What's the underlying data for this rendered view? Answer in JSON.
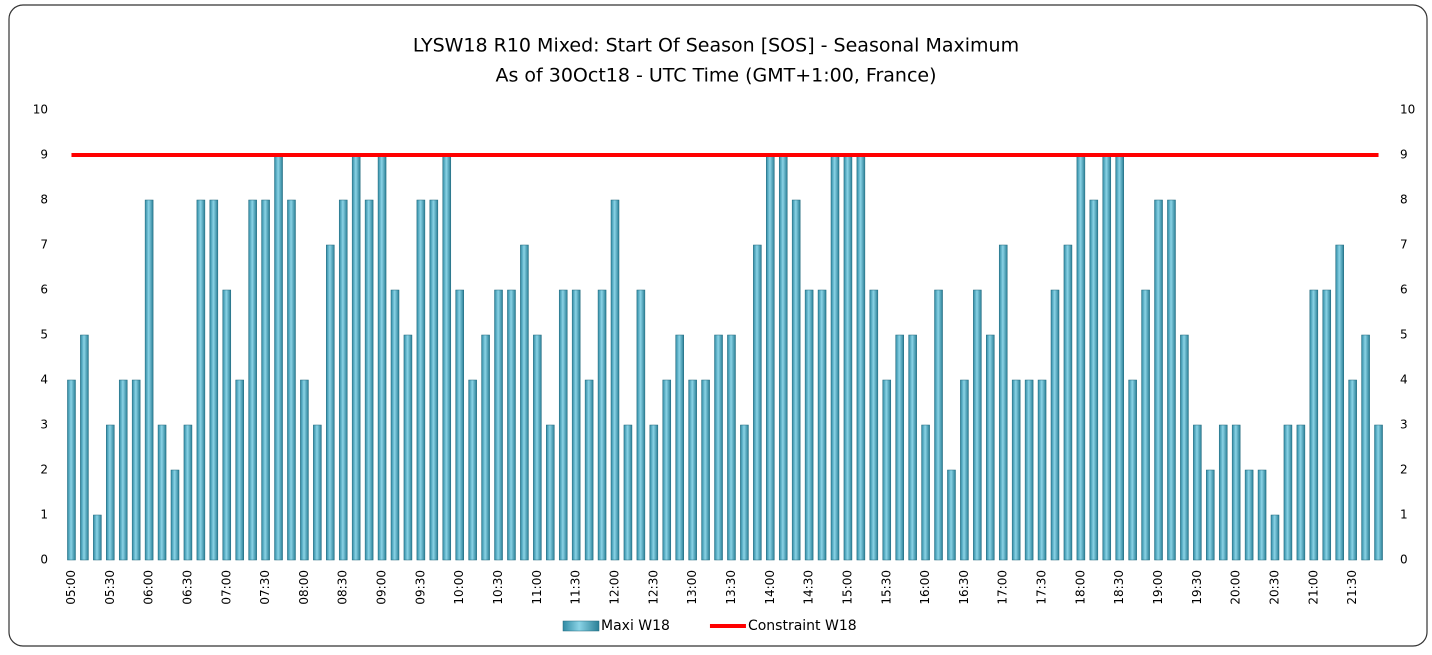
{
  "chart_data": {
    "type": "bar",
    "title": "LYSW18 R10  Mixed: Start Of Season [SOS] - Seasonal Maximum",
    "subtitle": "As of 30Oct18 - UTC Time (GMT+1:00, France)",
    "categories": [
      "05:00",
      null,
      null,
      "05:30",
      null,
      null,
      "06:00",
      null,
      null,
      "06:30",
      null,
      null,
      "07:00",
      null,
      null,
      "07:30",
      null,
      null,
      "08:00",
      null,
      null,
      "08:30",
      null,
      null,
      "09:00",
      null,
      null,
      "09:30",
      null,
      null,
      "10:00",
      null,
      null,
      "10:30",
      null,
      null,
      "11:00",
      null,
      null,
      "11:30",
      null,
      null,
      "12:00",
      null,
      null,
      "12:30",
      null,
      null,
      "13:00",
      null,
      null,
      "13:30",
      null,
      null,
      "14:00",
      null,
      null,
      "14:30",
      null,
      null,
      "15:00",
      null,
      null,
      "15:30",
      null,
      null,
      "16:00",
      null,
      null,
      "16:30",
      null,
      null,
      "17:00",
      null,
      null,
      "17:30",
      null,
      null,
      "18:00",
      null,
      null,
      "18:30",
      null,
      null,
      "19:00",
      null,
      null,
      "19:30",
      null,
      null,
      "20:00",
      null,
      null,
      "20:30",
      null,
      null,
      "21:00",
      null,
      null,
      "21:30",
      null,
      null
    ],
    "series": [
      {
        "name": "Maxi W18",
        "color": "#4bacc6",
        "values": [
          4,
          5,
          1,
          3,
          4,
          4,
          8,
          3,
          2,
          3,
          8,
          8,
          6,
          4,
          8,
          8,
          9,
          8,
          4,
          3,
          7,
          8,
          9,
          8,
          9,
          6,
          5,
          8,
          8,
          9,
          6,
          4,
          5,
          6,
          6,
          7,
          5,
          3,
          6,
          6,
          4,
          6,
          8,
          3,
          6,
          3,
          4,
          5,
          4,
          4,
          5,
          5,
          3,
          7,
          9,
          9,
          8,
          6,
          6,
          9,
          9,
          9,
          6,
          4,
          5,
          5,
          3,
          6,
          2,
          4,
          6,
          5,
          7,
          4,
          4,
          4,
          6,
          7,
          9,
          8,
          9,
          9,
          4,
          6,
          8,
          8,
          5,
          3,
          2,
          3,
          3,
          2,
          2,
          1,
          3,
          3,
          6,
          6,
          7,
          4,
          5,
          3
        ]
      },
      {
        "name": "Constraint W18",
        "color": "#ff0000",
        "axis": "y2",
        "type": "line",
        "values": [
          9,
          9,
          9,
          9,
          9,
          9,
          9,
          9,
          9,
          9,
          9,
          9,
          9,
          9,
          9,
          9,
          9,
          9,
          9,
          9,
          9,
          9,
          9,
          9,
          9,
          9,
          9,
          9,
          9,
          9,
          9,
          9,
          9,
          9,
          9,
          9,
          9,
          9,
          9,
          9,
          9,
          9,
          9,
          9,
          9,
          9,
          9,
          9,
          9,
          9,
          9,
          9,
          9,
          9,
          9,
          9,
          9,
          9,
          9,
          9,
          9,
          9,
          9,
          9,
          9,
          9,
          9,
          9,
          9,
          9,
          9,
          9,
          9,
          9,
          9,
          9,
          9,
          9,
          9,
          9,
          9,
          9,
          9,
          9,
          9,
          9,
          9,
          9,
          9,
          9,
          9,
          9,
          9,
          9,
          9,
          9,
          9,
          9,
          9,
          9,
          9,
          9
        ]
      }
    ],
    "ylim": [
      0,
      10
    ],
    "yticks": [
      0,
      1,
      2,
      3,
      4,
      5,
      6,
      7,
      8,
      9,
      10
    ],
    "y2lim": [
      0,
      10
    ],
    "y2ticks": [
      0,
      1,
      2,
      3,
      4,
      5,
      6,
      7,
      8,
      9,
      10
    ],
    "legend": "bottom"
  }
}
